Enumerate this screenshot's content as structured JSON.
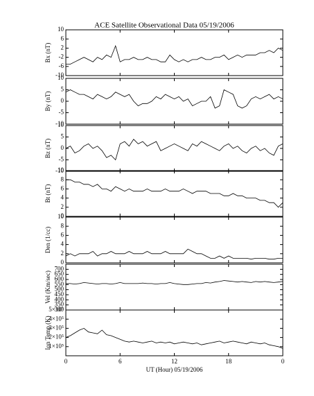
{
  "chart_data": [
    {
      "type": "line",
      "title": "ACE Satellite Observational Data  05/19/2006",
      "ylabel": "Bx (nT)",
      "ylim": [
        -10,
        10
      ],
      "yticks": [
        -10,
        -6,
        -2,
        2,
        6,
        10
      ],
      "values": [
        -5,
        -5,
        -4,
        -3,
        -2,
        -3,
        -4,
        -2,
        -3,
        -1,
        -2,
        3,
        -4,
        -3,
        -3,
        -2,
        -3,
        -3,
        -2,
        -3,
        -3,
        -4,
        -4,
        -1,
        -3,
        -4,
        -3,
        -4,
        -3,
        -3,
        -2,
        -3,
        -3,
        -2,
        -2,
        -1,
        -3,
        -2,
        -1,
        -2,
        -1,
        -1,
        -1,
        0,
        0,
        1,
        0,
        2,
        1
      ]
    },
    {
      "type": "line",
      "ylabel": "By (nT)",
      "ylim": [
        -10,
        10
      ],
      "yticks": [
        -10,
        -5,
        0,
        5,
        10
      ],
      "values": [
        4,
        5,
        4,
        3,
        3,
        2,
        1,
        3,
        2,
        1,
        2,
        4,
        3,
        2,
        3,
        0,
        -2,
        -1,
        -1,
        0,
        2,
        1,
        3,
        2,
        1,
        2,
        0,
        1,
        -2,
        -1,
        0,
        0,
        2,
        -3,
        -2,
        5,
        4,
        3,
        -2,
        -3,
        -2,
        1,
        2,
        1,
        2,
        3,
        1,
        2,
        1
      ]
    },
    {
      "type": "line",
      "ylabel": "Bz (nT)",
      "ylim": [
        -10,
        10
      ],
      "yticks": [
        -10,
        -5,
        0,
        5,
        10
      ],
      "values": [
        0,
        1,
        -2,
        -1,
        1,
        2,
        0,
        1,
        -1,
        -4,
        -3,
        -5,
        2,
        3,
        1,
        4,
        2,
        3,
        1,
        2,
        3,
        -1,
        0,
        1,
        2,
        1,
        0,
        -1,
        2,
        1,
        3,
        2,
        1,
        0,
        -1,
        1,
        2,
        0,
        1,
        -1,
        -2,
        0,
        1,
        -1,
        0,
        -2,
        -3,
        1,
        2
      ]
    },
    {
      "type": "line",
      "ylabel": "Bt (nT)",
      "ylim": [
        0,
        10
      ],
      "yticks": [
        0,
        2,
        4,
        6,
        8,
        10
      ],
      "values": [
        8,
        8,
        7.5,
        7.5,
        7,
        7,
        6.5,
        7,
        6,
        6,
        5.5,
        6.5,
        6,
        5.5,
        6,
        5.5,
        5.5,
        5.5,
        6,
        5.5,
        5.5,
        5.5,
        6,
        5.5,
        5.5,
        5.5,
        6,
        5.5,
        5,
        5.5,
        5.5,
        5.5,
        5,
        5,
        5,
        4.5,
        4.5,
        5,
        4.5,
        4.5,
        4,
        4,
        4,
        3.5,
        3.5,
        3,
        3,
        2,
        3
      ]
    },
    {
      "type": "line",
      "ylabel": "Den (1/cc)",
      "ylim": [
        0,
        10
      ],
      "yticks": [
        0,
        2,
        4,
        6,
        8,
        10
      ],
      "values": [
        1.5,
        2,
        1.5,
        2,
        2,
        2,
        2.5,
        1.5,
        2,
        2,
        2.5,
        2,
        2,
        2,
        2.5,
        2,
        2,
        2,
        2.5,
        2,
        2,
        2,
        2.5,
        2,
        2,
        2,
        2,
        3,
        2.5,
        2,
        2,
        1.5,
        1,
        1,
        1.5,
        1,
        1.5,
        1,
        1,
        1,
        1,
        0.8,
        1,
        1,
        1,
        0.8,
        0.8,
        1,
        1
      ]
    },
    {
      "type": "line",
      "ylabel": "Vel (Km/sec)",
      "ylim": [
        300,
        750
      ],
      "yticks": [
        300,
        350,
        400,
        450,
        500,
        550,
        600,
        650,
        700
      ],
      "values": [
        560,
        560,
        555,
        560,
        570,
        565,
        560,
        555,
        560,
        560,
        555,
        560,
        570,
        560,
        560,
        560,
        560,
        565,
        560,
        560,
        555,
        560,
        560,
        570,
        560,
        555,
        550,
        550,
        555,
        560,
        560,
        570,
        565,
        575,
        580,
        590,
        585,
        580,
        575,
        580,
        575,
        570,
        580,
        575,
        580,
        575,
        570,
        575,
        580
      ]
    },
    {
      "type": "line",
      "ylabel": "Ion Temp (K)",
      "xlabel": "UT (Hour)  05/19/2006",
      "ylim": [
        0,
        500000
      ],
      "yticks": [
        {
          "value": 100000,
          "label": "1×10⁵"
        },
        {
          "value": 200000,
          "label": "2×10⁵"
        },
        {
          "value": 300000,
          "label": "3×10⁵"
        },
        {
          "value": 400000,
          "label": "4×10⁵"
        },
        {
          "value": 500000,
          "label": "5×10⁵"
        }
      ],
      "xlim": [
        0,
        24
      ],
      "xticks": [
        0,
        6,
        12,
        18,
        {
          "value": 24,
          "label": "0"
        }
      ],
      "x": [
        0,
        0.5,
        1,
        1.5,
        2,
        2.5,
        3,
        3.5,
        4,
        4.5,
        5,
        5.5,
        6,
        6.5,
        7,
        7.5,
        8,
        8.5,
        9,
        9.5,
        10,
        10.5,
        11,
        11.5,
        12,
        12.5,
        13,
        13.5,
        14,
        14.5,
        15,
        15.5,
        16,
        16.5,
        17,
        17.5,
        18,
        18.5,
        19,
        19.5,
        20,
        20.5,
        21,
        21.5,
        22,
        22.5,
        23,
        23.5,
        24
      ],
      "values": [
        200000,
        220000,
        250000,
        280000,
        300000,
        260000,
        250000,
        240000,
        280000,
        230000,
        220000,
        200000,
        180000,
        160000,
        150000,
        160000,
        150000,
        140000,
        150000,
        160000,
        140000,
        150000,
        140000,
        150000,
        130000,
        140000,
        150000,
        140000,
        130000,
        140000,
        120000,
        130000,
        140000,
        150000,
        160000,
        140000,
        150000,
        160000,
        150000,
        140000,
        130000,
        150000,
        140000,
        130000,
        140000,
        120000,
        110000,
        100000,
        80000
      ]
    }
  ]
}
